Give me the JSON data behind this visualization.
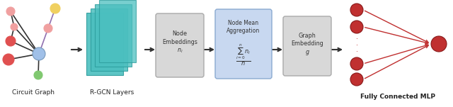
{
  "bg_color": "#ffffff",
  "arrow_color": "#333333",
  "teal_color": "#4bbfbf",
  "teal_edge": "#2a9a9a",
  "box_gray_bg": "#d8d8d8",
  "box_gray_edge": "#aaaaaa",
  "box_blue_bg": "#c8d8f0",
  "box_blue_edge": "#8aaad0",
  "node_red_dark": "#e05050",
  "node_red_light": "#f0a0a0",
  "node_blue": "#a0c0e8",
  "node_yellow": "#f0d060",
  "node_green": "#80c870",
  "mlp_red": "#c03030",
  "mlp_arrow": "#c03030",
  "purple_edge": "#9070b0",
  "label_circuit": "Circuit Graph",
  "label_rcgn": "R-GCN Layers",
  "label_fcmlp": "Fully Connected MLP",
  "label_node_embed_line1": "Node",
  "label_node_embed_line2": "Embeddings",
  "label_agg_line1": "Node Mean",
  "label_agg_line2": "Aggregation",
  "label_graph_embed_line1": "Graph",
  "label_graph_embed_line2": "Embedding"
}
